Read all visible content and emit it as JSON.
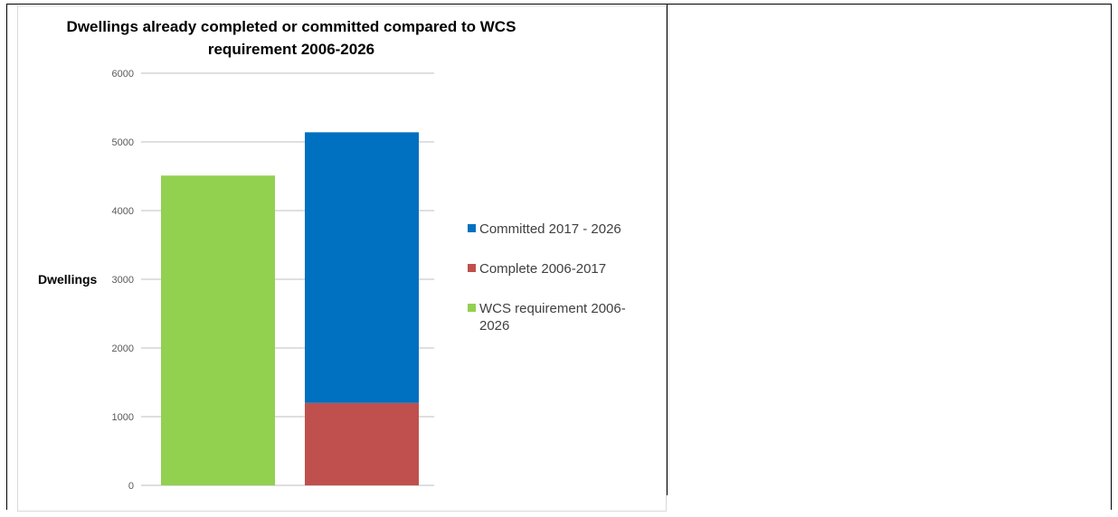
{
  "chart_data": {
    "type": "bar",
    "stacked": true,
    "title_lines": [
      "Dwellings already completed or committed compared to WCS",
      "requirement 2006-2026"
    ],
    "ylabel": "Dwellings",
    "ylim": [
      0,
      6000
    ],
    "yticks": [
      0,
      1000,
      2000,
      3000,
      4000,
      5000,
      6000
    ],
    "grid": true,
    "legend_position": "right",
    "categories": [
      "",
      ""
    ],
    "series": [
      {
        "name": "WCS requirement 2006-2026",
        "legend_lines": [
          "WCS requirement 2006-",
          "2026"
        ],
        "color": "#92d050",
        "values": [
          4510,
          0
        ]
      },
      {
        "name": "Complete 2006-2017",
        "legend_lines": [
          "Complete 2006-2017"
        ],
        "color": "#c0504d",
        "values": [
          0,
          1200
        ]
      },
      {
        "name": "Committed 2017 - 2026",
        "legend_lines": [
          "Committed 2017 - 2026"
        ],
        "color": "#0070c0",
        "values": [
          0,
          3940
        ]
      }
    ],
    "legend_order": [
      2,
      1,
      0
    ]
  }
}
